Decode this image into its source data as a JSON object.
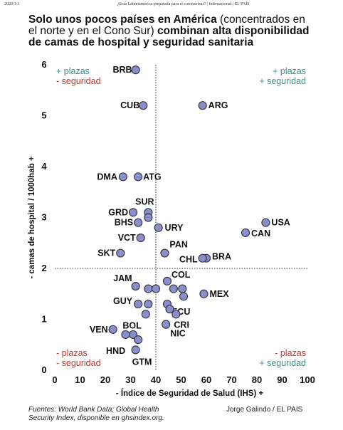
{
  "header": {
    "date": "2020/3/1",
    "source_title": "¿Está Latinoamérica preparada para el coronavirus? | Internacional | EL PAÍS"
  },
  "title_parts": {
    "bold1": "Solo unos pocos países en América",
    "normal": " (concentrados en el norte y en el Cono Sur) ",
    "bold2": "combinan alta disponibilidad de camas de hospital y seguridad sanitaria"
  },
  "footer": {
    "sources_line1": "Fuentes: World Bank Data; Global Health",
    "sources_line2": "Security Index, disponible en ghsindex.org.",
    "author": "Jorge Galindo / EL PAIS"
  },
  "colors": {
    "point_fill": "#8a8ec9",
    "point_stroke": "#3a3a4a",
    "minus_color": "#c0392b",
    "plus_color": "#3f8f8c"
  },
  "chart_data": {
    "type": "scatter",
    "title": "Solo unos pocos países en América (concentrados en el norte y en el Cono Sur) combinan alta disponibilidad de camas de hospital y seguridad sanitaria",
    "xlabel": "- Índice de Seguridad de Salud (IHS) +",
    "ylabel": "- camas de hospital / 1000hab +",
    "xlim": [
      0,
      100
    ],
    "ylim": [
      0,
      6
    ],
    "xticks": [
      0,
      10,
      20,
      30,
      40,
      50,
      60,
      70,
      80,
      90,
      100
    ],
    "yticks": [
      0,
      1,
      2,
      3,
      4,
      5,
      6
    ],
    "grid": false,
    "reference_lines": {
      "x": 40,
      "y": 2
    },
    "quadrant_labels": {
      "top_left": [
        "+ plazas",
        "- seguridad"
      ],
      "top_right": [
        "+ plazas",
        "+ seguridad"
      ],
      "bottom_left": [
        "- plazas",
        "- seguridad"
      ],
      "bottom_right": [
        "- plazas",
        "+ seguridad"
      ]
    },
    "points": [
      {
        "label": "BRB",
        "x": 32,
        "y": 5.9
      },
      {
        "label": "CUB",
        "x": 35,
        "y": 5.2
      },
      {
        "label": "ARG",
        "x": 58.5,
        "y": 5.2
      },
      {
        "label": "DMA",
        "x": 27,
        "y": 3.8
      },
      {
        "label": "ATG",
        "x": 33,
        "y": 3.8
      },
      {
        "label": "SUR",
        "x": 37,
        "y": 3.1
      },
      {
        "label": "GRD",
        "x": 31,
        "y": 3.1
      },
      {
        "label": "",
        "x": 37,
        "y": 3.0
      },
      {
        "label": "BHS",
        "x": 33,
        "y": 2.9
      },
      {
        "label": "URY",
        "x": 41,
        "y": 2.8
      },
      {
        "label": "USA",
        "x": 83.5,
        "y": 2.9
      },
      {
        "label": "CAN",
        "x": 75.5,
        "y": 2.7
      },
      {
        "label": "VCT",
        "x": 34,
        "y": 2.6
      },
      {
        "label": "PAN",
        "x": 43.5,
        "y": 2.3
      },
      {
        "label": "SKT",
        "x": 26,
        "y": 2.3
      },
      {
        "label": "BRA",
        "x": 60,
        "y": 2.2
      },
      {
        "label": "CHL",
        "x": 58.5,
        "y": 2.2
      },
      {
        "label": "JAM",
        "x": 32,
        "y": 1.65
      },
      {
        "label": "",
        "x": 37,
        "y": 1.6
      },
      {
        "label": "",
        "x": 40,
        "y": 1.6
      },
      {
        "label": "COL",
        "x": 44.5,
        "y": 1.75
      },
      {
        "label": "",
        "x": 47,
        "y": 1.6
      },
      {
        "label": "",
        "x": 50.5,
        "y": 1.6
      },
      {
        "label": "MEX",
        "x": 59,
        "y": 1.5
      },
      {
        "label": "",
        "x": 51,
        "y": 1.45
      },
      {
        "label": "ECU",
        "x": 44.5,
        "y": 1.3
      },
      {
        "label": "GUY",
        "x": 33,
        "y": 1.3
      },
      {
        "label": "",
        "x": 37,
        "y": 1.3
      },
      {
        "label": "",
        "x": 45.5,
        "y": 1.2
      },
      {
        "label": "CRI",
        "x": 48,
        "y": 1.1
      },
      {
        "label": "BOL",
        "x": 36,
        "y": 1.1
      },
      {
        "label": "NIC",
        "x": 44,
        "y": 0.9
      },
      {
        "label": "VEN",
        "x": 23,
        "y": 0.8
      },
      {
        "label": "",
        "x": 28,
        "y": 0.7
      },
      {
        "label": "",
        "x": 31,
        "y": 0.7
      },
      {
        "label": "HND",
        "x": 33,
        "y": 0.6
      },
      {
        "label": "GTM",
        "x": 32,
        "y": 0.4
      }
    ]
  }
}
